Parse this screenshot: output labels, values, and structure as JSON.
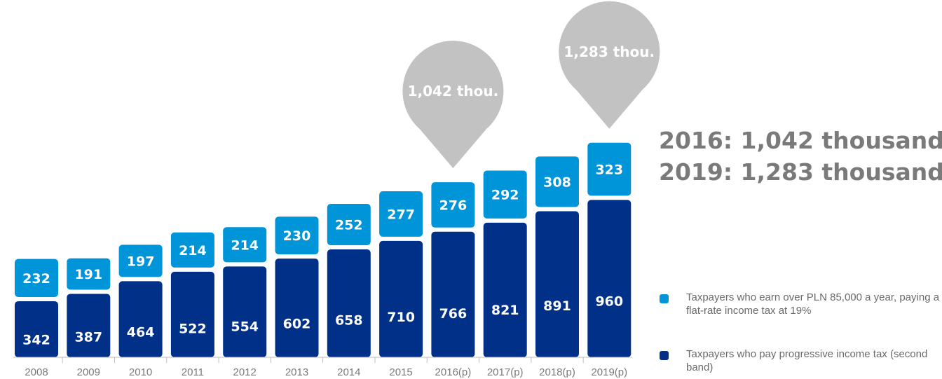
{
  "chart_data": {
    "type": "bar",
    "stacked": true,
    "categories": [
      "2008",
      "2009",
      "2010",
      "2011",
      "2012",
      "2013",
      "2014",
      "2015",
      "2016(p)",
      "2017(p)",
      "2018(p)",
      "2019(p)"
    ],
    "series": [
      {
        "name": "Taxpayers who pay progressive income tax (second band)",
        "color": "#003087",
        "values": [
          342,
          387,
          464,
          522,
          554,
          602,
          658,
          710,
          766,
          821,
          891,
          960
        ]
      },
      {
        "name": "Taxpayers who earn over PLN 85,000 a year, paying a flat-rate income tax at 19%",
        "color": "#0094d9",
        "values": [
          232,
          191,
          197,
          214,
          214,
          230,
          252,
          277,
          276,
          292,
          308,
          323
        ]
      }
    ],
    "annotations": [
      {
        "category": "2016(p)",
        "text": "1,042 thou."
      },
      {
        "category": "2019(p)",
        "text": "1,283 thou."
      }
    ],
    "legend_position": "right",
    "grid": false
  },
  "headlines": [
    "2016: 1,042 thousand",
    "2019: 1,283 thousand"
  ],
  "colors": {
    "bubble": "#c2c2c2",
    "axis": "#bdbdbd",
    "tick_text": "#7a7a7a"
  }
}
